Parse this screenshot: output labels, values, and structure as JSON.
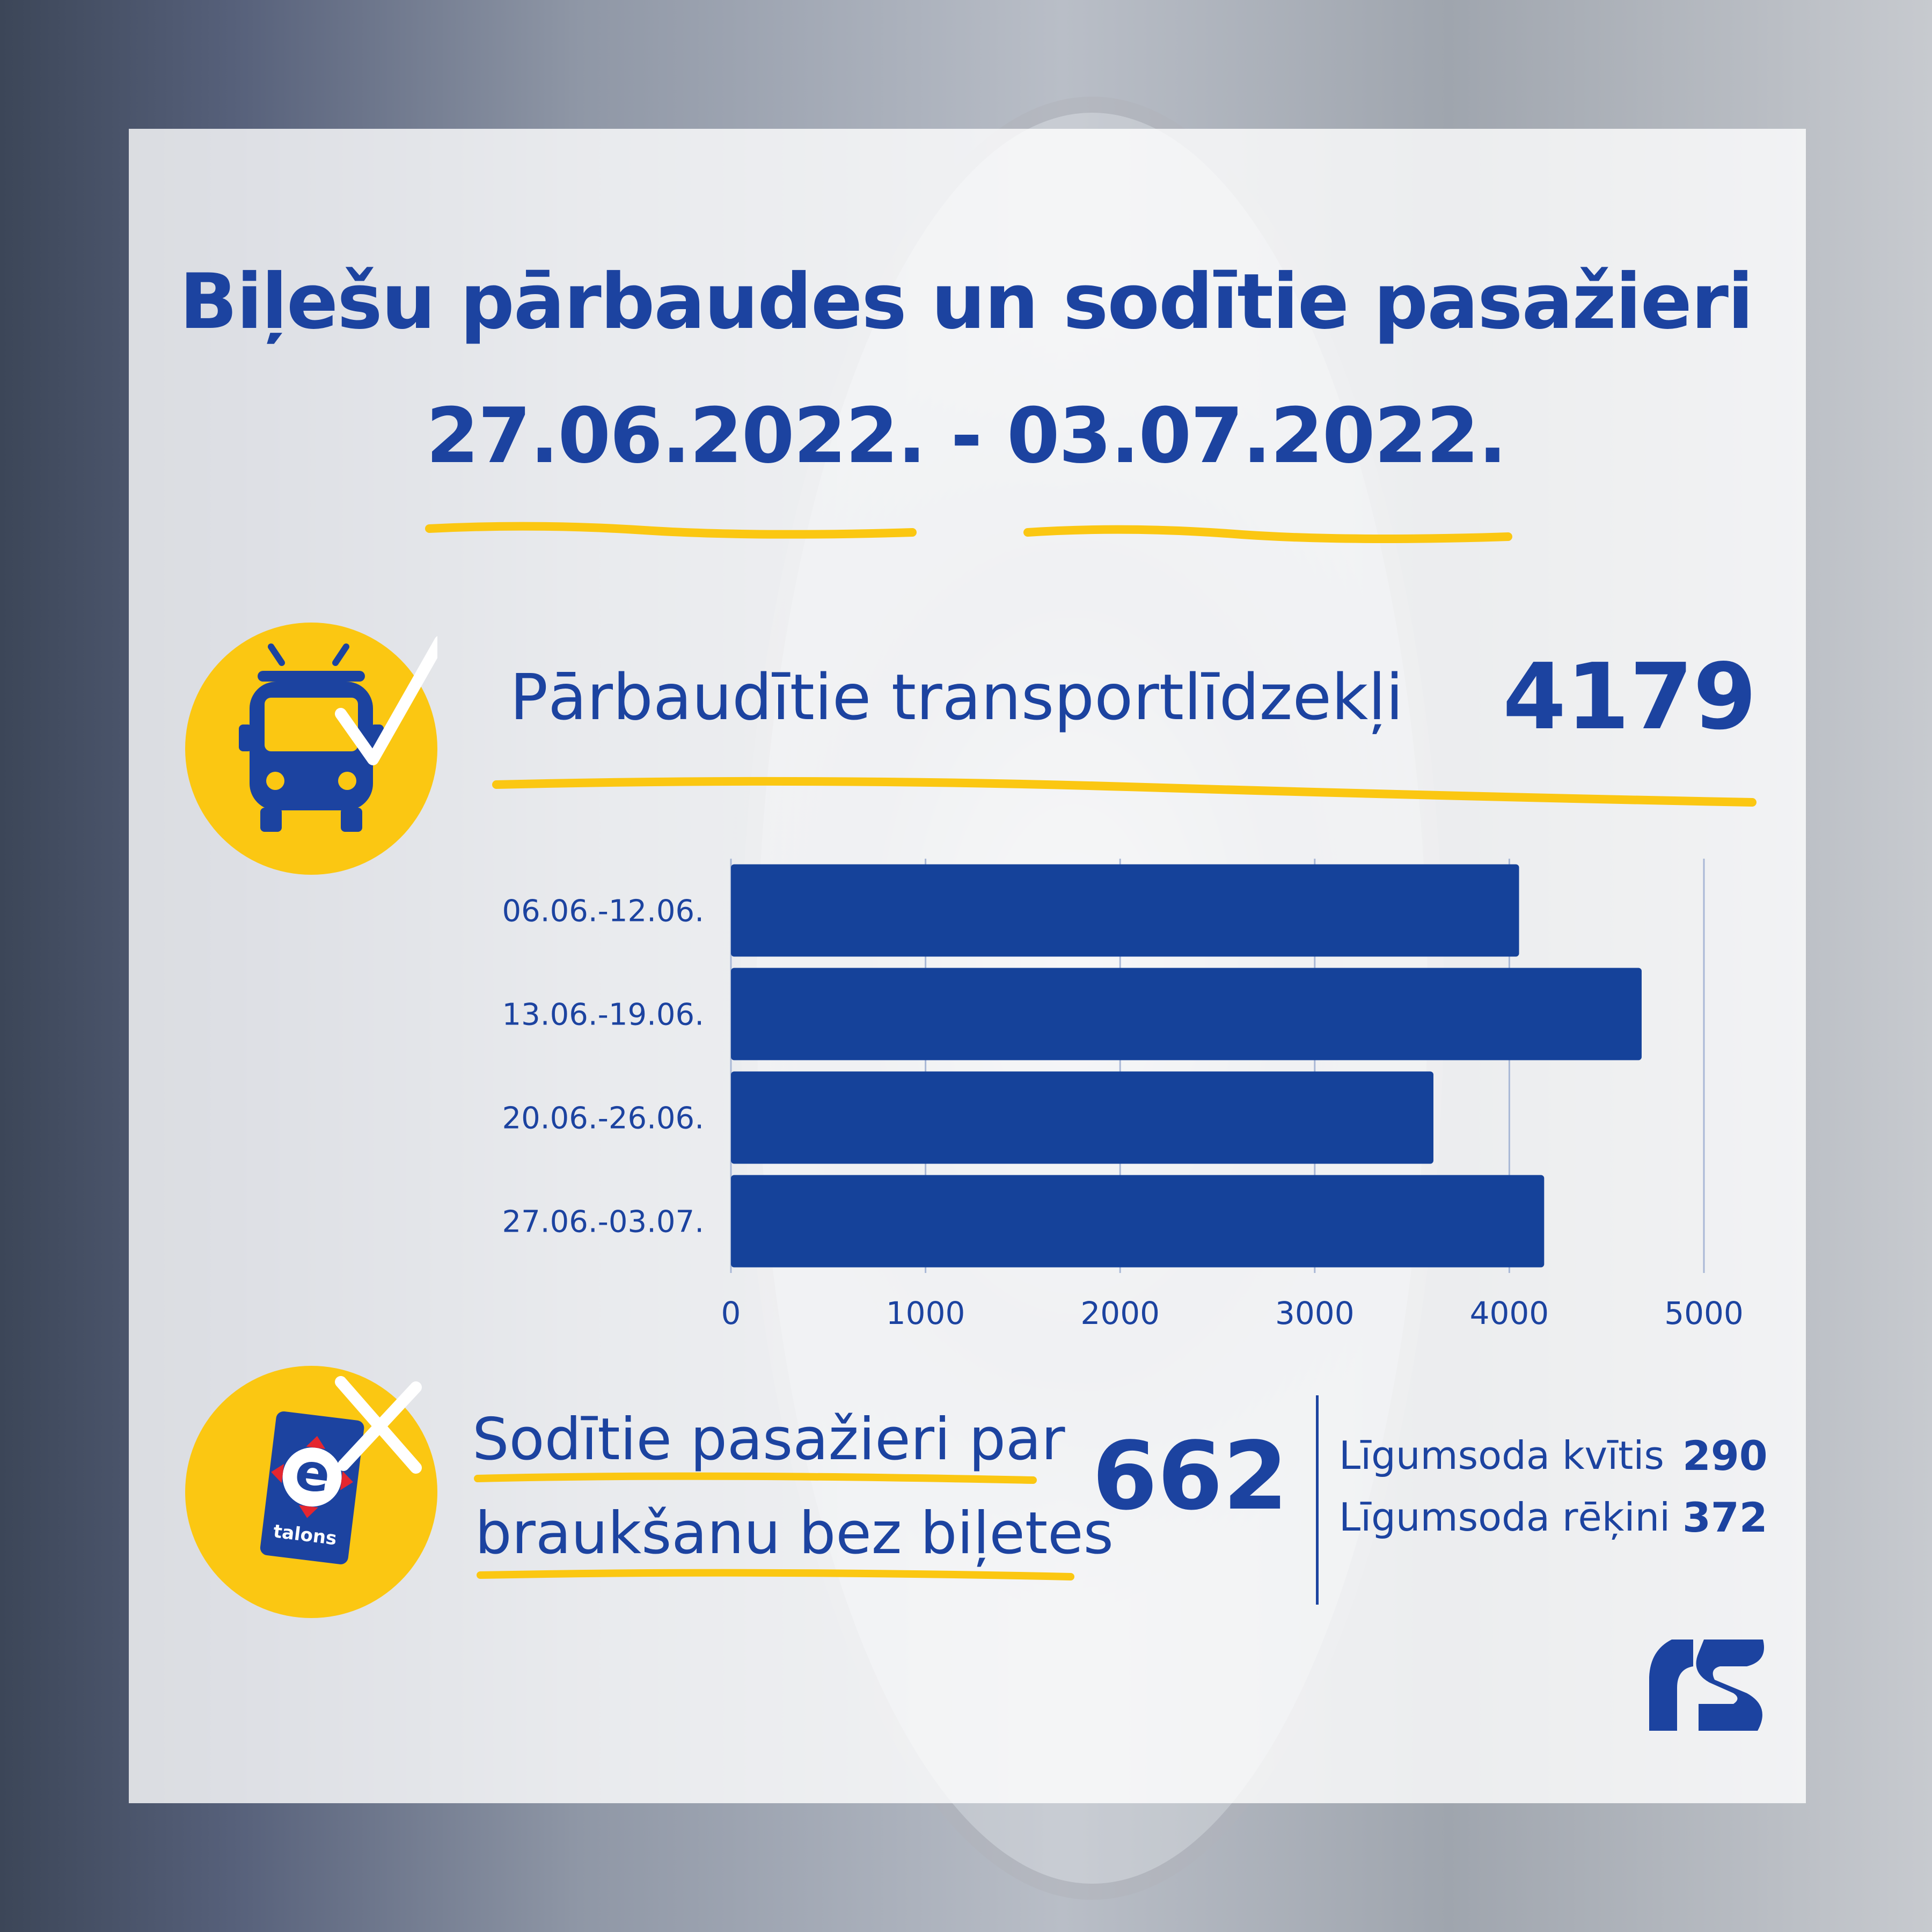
{
  "header": {
    "title": "Biļešu pārbaudes un sodītie pasažieri",
    "date_range": "27.06.2022. - 03.07.2022."
  },
  "colors": {
    "primary": "#1c43a0",
    "accent": "#fbc712",
    "bar": "#15429a",
    "gridline": "#a9b8d6"
  },
  "icons": {
    "vehicles": "trolleybus-check-icon",
    "passengers": "etalons-card-cross-icon",
    "brand": "rigas-satiksme-logo"
  },
  "checked_vehicles": {
    "label": "Pārbaudītie transportlīdzekļi",
    "value": "4179"
  },
  "fined_passengers": {
    "label_line1": "Sodītie pasažieri par",
    "label_line2": "braukšanu bez biļetes",
    "value": "662",
    "breakdown": [
      {
        "label": "Līgumsoda kvītis",
        "value": "290"
      },
      {
        "label": "Līgumsoda rēķini",
        "value": "372"
      }
    ]
  },
  "card": {
    "brand_text": "talons"
  },
  "chart_data": {
    "type": "bar",
    "orientation": "horizontal",
    "categories": [
      "06.06.-12.06.",
      "13.06.-19.06.",
      "20.06.-26.06.",
      "27.06.-03.07."
    ],
    "values": [
      4050,
      4680,
      3610,
      4179
    ],
    "xlim": [
      0,
      5000
    ],
    "xticks": [
      "0",
      "1000",
      "2000",
      "3000",
      "4000",
      "5000"
    ],
    "grid": true
  }
}
